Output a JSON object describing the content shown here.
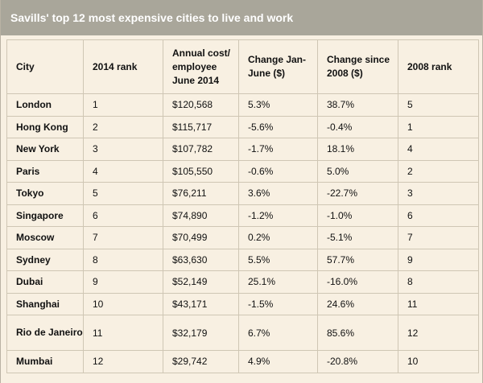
{
  "title": "Savills' top 12 most expensive cities to live and work",
  "columns": [
    "City",
    "2014 rank",
    "Annual cost/ employee June 2014",
    "Change Jan-June ($)",
    "Change since 2008 ($)",
    "2008 rank"
  ],
  "rows": [
    {
      "city": "London",
      "rank_2014": "1",
      "annual_cost": "$120,568",
      "change_jan_june": "5.3%",
      "change_since_2008": "38.7%",
      "rank_2008": "5"
    },
    {
      "city": "Hong Kong",
      "rank_2014": "2",
      "annual_cost": "$115,717",
      "change_jan_june": "-5.6%",
      "change_since_2008": "-0.4%",
      "rank_2008": "1"
    },
    {
      "city": "New York",
      "rank_2014": "3",
      "annual_cost": "$107,782",
      "change_jan_june": "-1.7%",
      "change_since_2008": "18.1%",
      "rank_2008": "4"
    },
    {
      "city": "Paris",
      "rank_2014": "4",
      "annual_cost": "$105,550",
      "change_jan_june": "-0.6%",
      "change_since_2008": "5.0%",
      "rank_2008": "2"
    },
    {
      "city": "Tokyo",
      "rank_2014": "5",
      "annual_cost": "$76,211",
      "change_jan_june": "3.6%",
      "change_since_2008": "-22.7%",
      "rank_2008": "3"
    },
    {
      "city": "Singapore",
      "rank_2014": "6",
      "annual_cost": "$74,890",
      "change_jan_june": "-1.2%",
      "change_since_2008": "-1.0%",
      "rank_2008": "6"
    },
    {
      "city": "Moscow",
      "rank_2014": "7",
      "annual_cost": "$70,499",
      "change_jan_june": "0.2%",
      "change_since_2008": "-5.1%",
      "rank_2008": "7"
    },
    {
      "city": "Sydney",
      "rank_2014": "8",
      "annual_cost": "$63,630",
      "change_jan_june": "5.5%",
      "change_since_2008": "57.7%",
      "rank_2008": "9"
    },
    {
      "city": "Dubai",
      "rank_2014": "9",
      "annual_cost": "$52,149",
      "change_jan_june": "25.1%",
      "change_since_2008": "-16.0%",
      "rank_2008": "8"
    },
    {
      "city": "Shanghai",
      "rank_2014": "10",
      "annual_cost": "$43,171",
      "change_jan_june": "-1.5%",
      "change_since_2008": "24.6%",
      "rank_2008": "11"
    },
    {
      "city": "Rio de Janeiro",
      "rank_2014": "11",
      "annual_cost": "$32,179",
      "change_jan_june": "6.7%",
      "change_since_2008": "85.6%",
      "rank_2008": "12"
    },
    {
      "city": "Mumbai",
      "rank_2014": "12",
      "annual_cost": "$29,742",
      "change_jan_june": "4.9%",
      "change_since_2008": "-20.8%",
      "rank_2008": "10"
    }
  ]
}
